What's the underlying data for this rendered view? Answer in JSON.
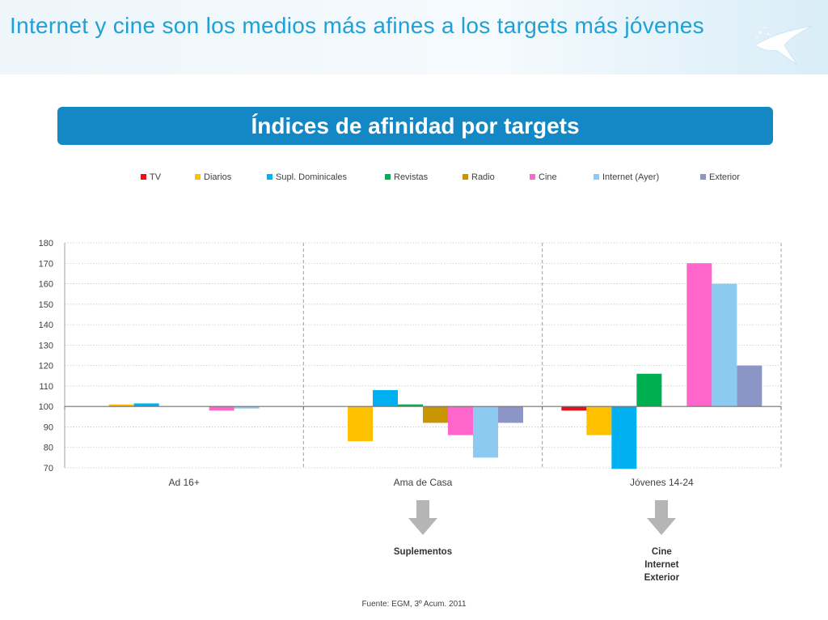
{
  "slide": {
    "title": "Internet  y cine son los medios más afines a los targets más jóvenes",
    "banner": "Índices de afinidad por targets",
    "source": "Fuente: EGM, 3º Acum. 2011"
  },
  "annotations": [
    {
      "arrow_name": "arrow-down-icon",
      "text": "Suplementos"
    },
    {
      "arrow_name": "arrow-down-icon",
      "text": "Cine\nInternet\nExterior"
    }
  ],
  "colors": {
    "title": "#1ea1d8",
    "banner": "#1488c4",
    "arrow": "#b5b5b5"
  },
  "chart_data": {
    "type": "bar",
    "title": "Índices de afinidad por targets",
    "categories": [
      "Ad 16+",
      "Ama de Casa",
      "Jóvenes 14-24"
    ],
    "baseline": 100,
    "ylim": [
      70,
      180
    ],
    "yticks": [
      70,
      80,
      90,
      100,
      110,
      120,
      130,
      140,
      150,
      160,
      170,
      180
    ],
    "legend_position": "top",
    "series": [
      {
        "name": "TV",
        "color": "#e0141e",
        "values": [
          100,
          100,
          98
        ]
      },
      {
        "name": "Diarios",
        "color": "#ffc000",
        "values": [
          101,
          83,
          86
        ]
      },
      {
        "name": "Supl. Dominicales",
        "color": "#00b0f0",
        "values": [
          101.5,
          108,
          69.5
        ]
      },
      {
        "name": "Revistas",
        "color": "#00b050",
        "values": [
          100,
          101,
          116
        ]
      },
      {
        "name": "Radio",
        "color": "#c89400",
        "values": [
          100,
          92,
          100
        ]
      },
      {
        "name": "Cine",
        "color": "#ff66cc",
        "values": [
          98,
          86,
          170
        ]
      },
      {
        "name": "Internet (Ayer)",
        "color": "#8ccaf2",
        "values": [
          99,
          75,
          160
        ]
      },
      {
        "name": "Exterior",
        "color": "#8c96c6",
        "values": [
          100,
          92,
          120
        ]
      }
    ]
  }
}
